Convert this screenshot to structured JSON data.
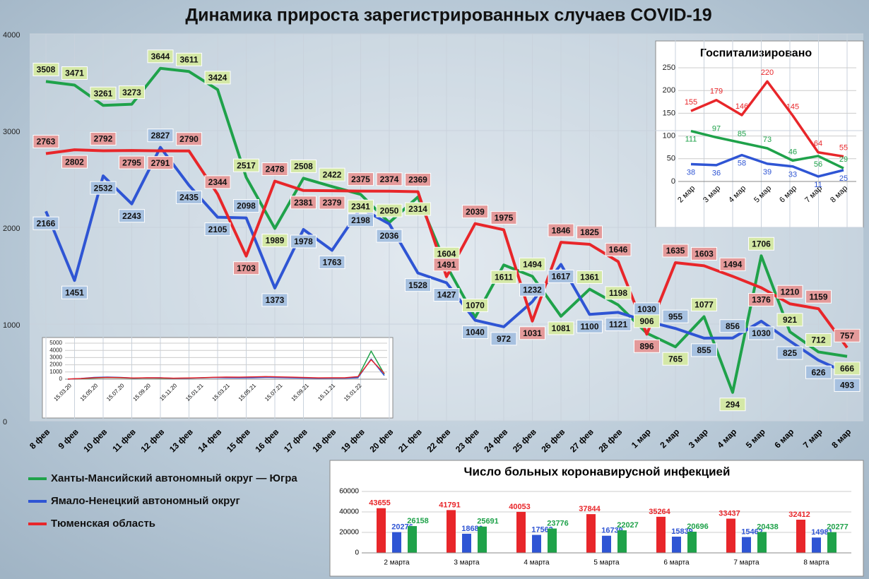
{
  "chart_data": [
    {
      "type": "line",
      "title": "Динамика прироста зарегистрированных случаев COVID-19",
      "categories": [
        "8 фев",
        "9 фев",
        "10 фев",
        "11 фев",
        "12 фев",
        "13 фев",
        "14 фев",
        "15 фев",
        "16 фев",
        "17 фев",
        "18 фев",
        "19 фев",
        "20 фев",
        "21 фев",
        "22 фев",
        "23 фев",
        "24 фев",
        "25 фев",
        "26 фев",
        "27 фев",
        "28 фев",
        "1 мар",
        "2 мар",
        "3 мар",
        "4 мар",
        "5 мар",
        "6 мар",
        "7 мар",
        "8 мар"
      ],
      "series": [
        {
          "name": "Ханты-Мансийский автономный округ — Югра",
          "color": "#1fa24a",
          "label_color": "#d4e8a6",
          "values": [
            3508,
            3471,
            3261,
            3273,
            3644,
            3611,
            3424,
            2517,
            1989,
            2508,
            2422,
            2341,
            2050,
            2314,
            1604,
            1070,
            1611,
            1494,
            1081,
            1361,
            1198,
            906,
            765,
            1077,
            294,
            1706,
            921,
            712,
            666
          ]
        },
        {
          "name": "Ямало-Ненецкий автономный округ",
          "color": "#2f55d4",
          "label_color": "#a7c1e0",
          "values": [
            2166,
            1451,
            2532,
            2243,
            2827,
            2435,
            2105,
            2098,
            1373,
            1978,
            1763,
            2198,
            2036,
            1528,
            1427,
            1040,
            972,
            1232,
            1617,
            1100,
            1121,
            1030,
            955,
            855,
            856,
            1030,
            825,
            626,
            493
          ]
        },
        {
          "name": "Тюменская область",
          "color": "#e8262a",
          "label_color": "#e49a9a",
          "values": [
            2763,
            2802,
            2792,
            2795,
            2791,
            2790,
            2344,
            1703,
            2478,
            2381,
            2379,
            2375,
            2374,
            2369,
            1491,
            2039,
            1975,
            1031,
            1846,
            1825,
            1646,
            896,
            1635,
            1603,
            1494,
            1376,
            1210,
            1159,
            757
          ]
        }
      ],
      "ylim": [
        0,
        4000
      ],
      "yticks": [
        0,
        1000,
        2000,
        3000,
        4000
      ],
      "grid": true,
      "legend": "bottom-left"
    },
    {
      "type": "line",
      "categories": [
        "15.03.20",
        null,
        "15.05.20",
        null,
        "15.07.20",
        null,
        "15.09.20",
        null,
        "15.11.20",
        null,
        "15.01.21",
        null,
        "15.03.21",
        null,
        "15.05.21",
        null,
        "15.07.21",
        null,
        "15.09.21",
        null,
        "15.11.21",
        null,
        "15.01.22",
        null,
        null
      ],
      "series": [
        {
          "color": "#1fa24a",
          "values": [
            10,
            60,
            150,
            220,
            180,
            120,
            160,
            140,
            110,
            130,
            170,
            220,
            260,
            240,
            300,
            330,
            280,
            240,
            190,
            150,
            160,
            170,
            300,
            3900,
            700
          ]
        },
        {
          "color": "#2f55d4",
          "values": [
            5,
            100,
            250,
            300,
            250,
            150,
            180,
            200,
            120,
            140,
            180,
            230,
            200,
            180,
            200,
            250,
            220,
            180,
            150,
            120,
            130,
            140,
            200,
            2800,
            500
          ]
        },
        {
          "color": "#e8262a",
          "values": [
            20,
            80,
            200,
            250,
            220,
            160,
            200,
            180,
            140,
            160,
            200,
            260,
            300,
            280,
            320,
            360,
            320,
            280,
            230,
            180,
            190,
            200,
            350,
            2700,
            800
          ]
        }
      ],
      "ylim": [
        0,
        5000
      ],
      "yticks": [
        0,
        1000,
        2000,
        3000,
        4000,
        5000
      ],
      "grid": true
    },
    {
      "type": "line",
      "title": "Госпитализировано",
      "categories": [
        "2 мар",
        "3 мар",
        "4 мар",
        "5 мар",
        "6 мар",
        "7 мар",
        "8 мар"
      ],
      "series": [
        {
          "color": "#e8262a",
          "values": [
            155,
            179,
            146,
            220,
            145,
            64,
            55
          ]
        },
        {
          "color": "#1fa24a",
          "values": [
            111,
            97,
            85,
            73,
            46,
            56,
            29
          ]
        },
        {
          "color": "#2f55d4",
          "values": [
            38,
            36,
            58,
            39,
            33,
            11,
            25
          ]
        }
      ],
      "ylim": [
        0,
        250
      ],
      "yticks": [
        0,
        50,
        100,
        150,
        200,
        250
      ],
      "grid": true
    },
    {
      "type": "bar",
      "title": "Число больных коронавирусной инфекцией",
      "categories": [
        "2 марта",
        "3 марта",
        "4 марта",
        "5 марта",
        "6 марта",
        "7 марта",
        "8 марта"
      ],
      "series": [
        {
          "color": "#e8262a",
          "values": [
            43655,
            41791,
            40053,
            37844,
            35264,
            33437,
            32412
          ]
        },
        {
          "color": "#2f55d4",
          "values": [
            20276,
            18680,
            17562,
            16739,
            15839,
            15462,
            14981
          ]
        },
        {
          "color": "#1fa24a",
          "values": [
            26158,
            25691,
            23776,
            22027,
            20696,
            20438,
            20277
          ]
        }
      ],
      "ylim": [
        0,
        60000
      ],
      "yticks": [
        0,
        20000,
        40000,
        60000
      ],
      "grid": true
    }
  ]
}
